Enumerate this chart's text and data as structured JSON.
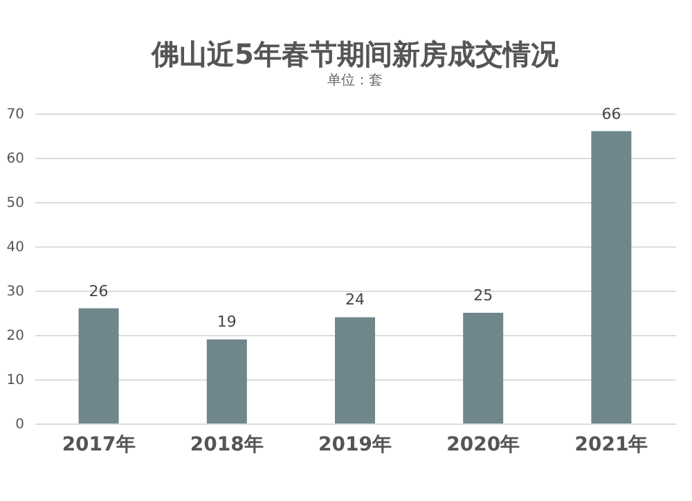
{
  "chart_data": {
    "type": "bar",
    "title": "佛山近5年春节期间新房成交情况",
    "subtitle": "单位：套",
    "categories": [
      "2017年",
      "2018年",
      "2019年",
      "2020年",
      "2021年"
    ],
    "values": [
      26,
      19,
      24,
      25,
      66
    ],
    "color": "#6f878b",
    "ylim": [
      0,
      70
    ],
    "yticks": [
      0,
      10,
      20,
      30,
      40,
      50,
      60,
      70
    ],
    "grid": "y",
    "data_labels": true
  }
}
